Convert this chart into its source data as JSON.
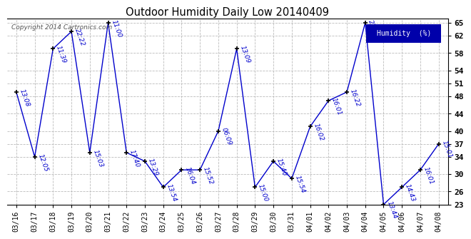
{
  "title": "Outdoor Humidity Daily Low 20140409",
  "copyright_text": "Copyright 2014 Cartronics.com",
  "ylabel": "Humidity  (%)",
  "background_color": "#ffffff",
  "plot_bg_color": "#ffffff",
  "line_color": "#0000cc",
  "marker_color": "#000000",
  "label_color": "#0000cc",
  "grid_color": "#bbbbbb",
  "legend_bg": "#0000aa",
  "legend_text_color": "#ffffff",
  "ylim": [
    23,
    66
  ],
  "yticks": [
    23,
    26,
    30,
    34,
    37,
    40,
    44,
    48,
    51,
    54,
    58,
    62,
    65
  ],
  "dates": [
    "03/16",
    "03/17",
    "03/18",
    "03/19",
    "03/20",
    "03/21",
    "03/22",
    "03/23",
    "03/24",
    "03/25",
    "03/26",
    "03/27",
    "03/28",
    "03/29",
    "03/30",
    "03/31",
    "04/01",
    "04/02",
    "04/03",
    "04/04",
    "04/05",
    "04/06",
    "04/07",
    "04/08"
  ],
  "values": [
    49,
    34,
    59,
    63,
    35,
    65,
    35,
    33,
    27,
    31,
    31,
    40,
    59,
    27,
    33,
    29,
    41,
    47,
    49,
    65,
    23,
    27,
    31,
    37
  ],
  "labels": [
    "13:08",
    "12:05",
    "11:39",
    "22:22",
    "15:03",
    "11:00",
    "17:40",
    "13:29",
    "13:54",
    "16:04",
    "15:52",
    "06:09",
    "13:09",
    "15:00",
    "15:40",
    "15:54",
    "16:02",
    "16:01",
    "16:22",
    "23:52",
    "13:44",
    "14:43",
    "16:01",
    "15:01"
  ]
}
